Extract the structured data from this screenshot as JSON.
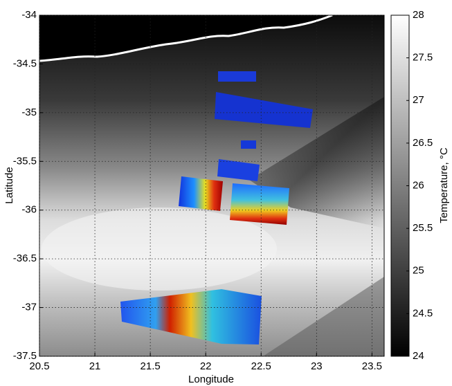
{
  "map": {
    "xlabel": "Longitude",
    "ylabel": "Latitude",
    "xlim": [
      20.5,
      23.61
    ],
    "ylim": [
      -37.5,
      -34
    ],
    "xticks": [
      20.5,
      21,
      21.5,
      22,
      22.5,
      23,
      23.5
    ],
    "yticks": [
      -34,
      -34.5,
      -35,
      -35.5,
      -36,
      -36.5,
      -37,
      -37.5
    ],
    "grid": true,
    "colorbar": {
      "label": "Temperature, °C",
      "lim": [
        24,
        28
      ],
      "ticks": [
        24,
        24.5,
        25,
        25.5,
        26,
        26.5,
        27,
        27.5,
        28
      ]
    }
  }
}
